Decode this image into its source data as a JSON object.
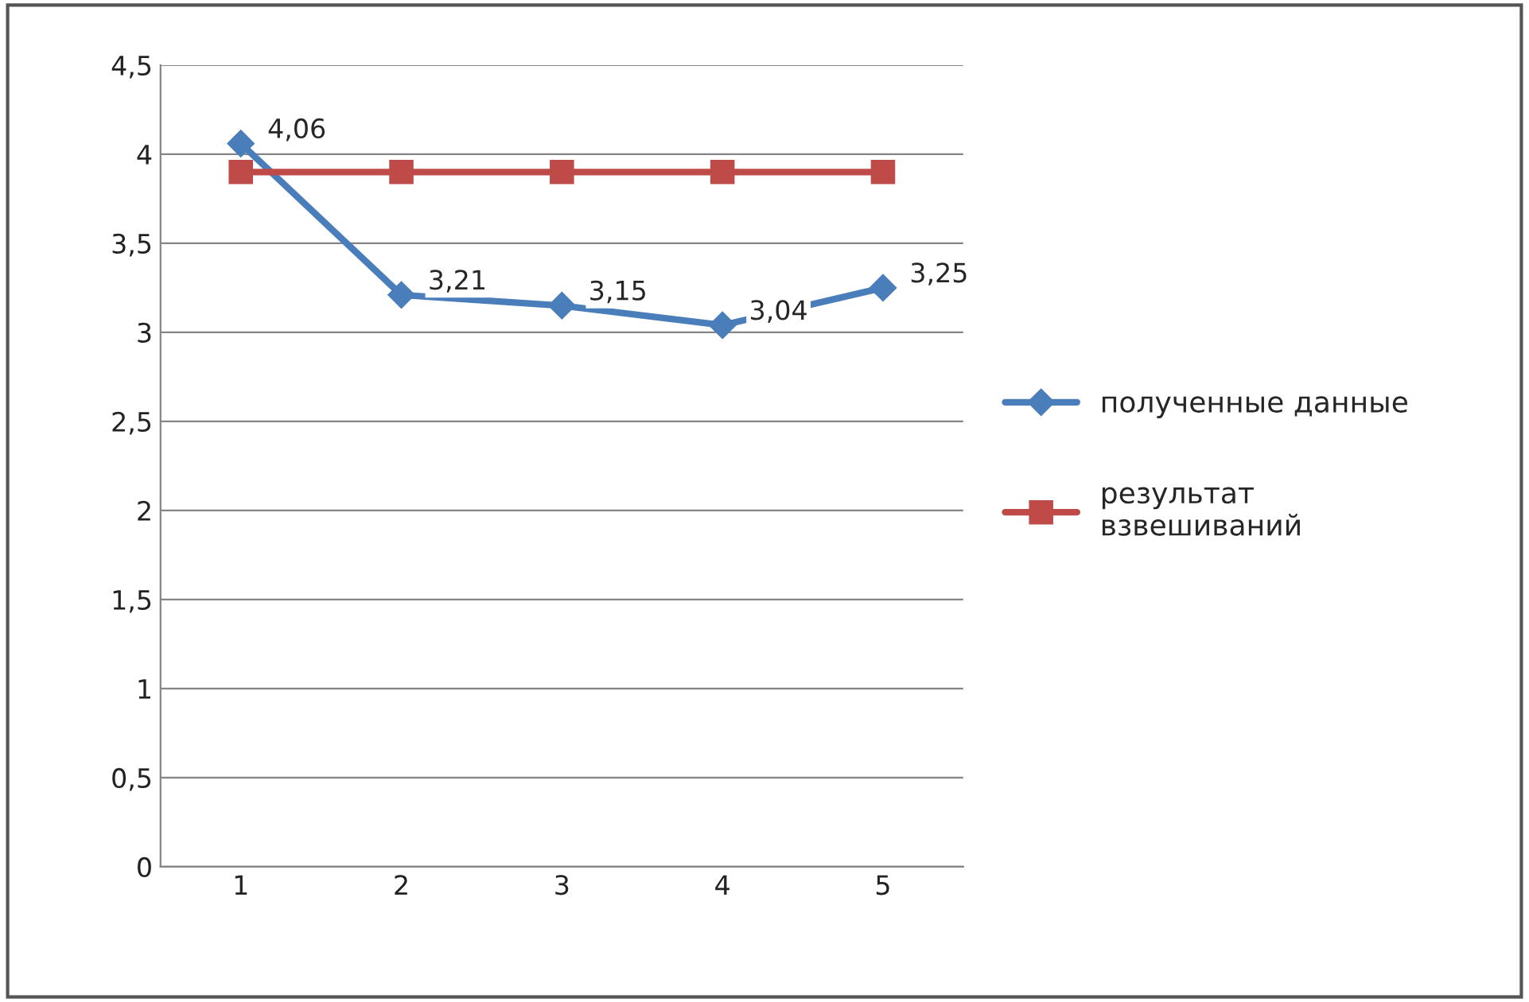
{
  "chart_data": {
    "type": "line",
    "categories": [
      "1",
      "2",
      "3",
      "4",
      "5"
    ],
    "series": [
      {
        "name": "полученные данные",
        "color": "#4a7ebb",
        "marker": "diamond",
        "values": [
          4.06,
          3.21,
          3.15,
          3.04,
          3.25
        ],
        "value_labels": [
          "4,06",
          "3,21",
          "3,15",
          "3,04",
          "3,25"
        ]
      },
      {
        "name": "результат\nвзвешиваний",
        "color": "#be4b48",
        "marker": "square",
        "values": [
          3.9,
          3.9,
          3.9,
          3.9,
          3.9
        ]
      }
    ],
    "ylim": [
      0,
      4.5
    ],
    "yticks": [
      {
        "value": 0,
        "label": "0"
      },
      {
        "value": 0.5,
        "label": "0,5"
      },
      {
        "value": 1,
        "label": "1"
      },
      {
        "value": 1.5,
        "label": "1,5"
      },
      {
        "value": 2,
        "label": "2"
      },
      {
        "value": 2.5,
        "label": "2,5"
      },
      {
        "value": 3,
        "label": "3"
      },
      {
        "value": 3.5,
        "label": "3,5"
      },
      {
        "value": 4,
        "label": "4"
      },
      {
        "value": 4.5,
        "label": "4,5"
      }
    ],
    "grid": "y",
    "legend": "right",
    "line_style": "solid"
  }
}
